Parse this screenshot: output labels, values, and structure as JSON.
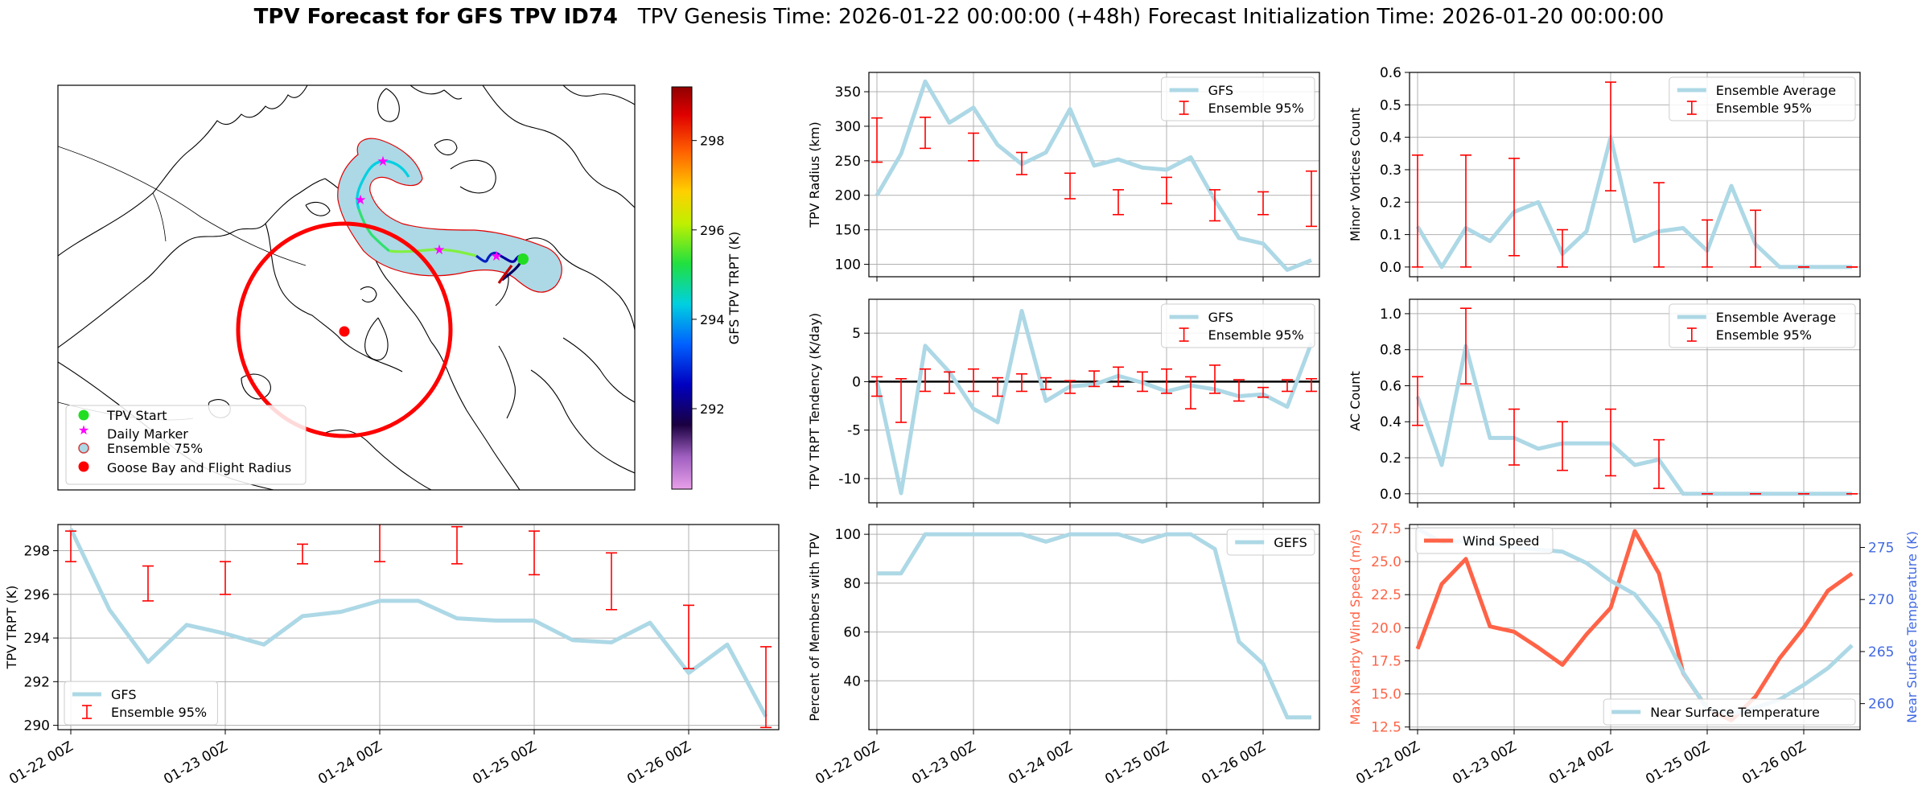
{
  "header": {
    "title_bold": "TPV Forecast for GFS TPV ID74",
    "title_rest": "TPV Genesis Time: 2026-01-22 00:00:00 (+48h)   Forecast Initialization Time: 2026-01-20 00:00:00"
  },
  "date_ticks": [
    "01-22 00Z",
    "01-23 00Z",
    "01-24 00Z",
    "01-25 00Z",
    "01-26 00Z"
  ],
  "colors": {
    "gfs": "#add8e6",
    "err": "#ff0000",
    "wind": "#ff6347",
    "temp_axis": "#4169e1",
    "zero": "#000000"
  },
  "chart_data": [
    {
      "id": "map",
      "type": "map",
      "colorbar": {
        "label": "GFS TPV TRPT (K)",
        "ticks": [
          292,
          294,
          296,
          298
        ],
        "range": [
          290.2,
          299.2
        ]
      },
      "legend": [
        "TPV Start",
        "Daily Marker",
        "Ensemble 75%",
        "Goose Bay and Flight Radius"
      ],
      "legend_location": "lower-left"
    },
    {
      "id": "trpt",
      "type": "line",
      "ylabel": "TPV TRPT (K)",
      "ylim": [
        289.8,
        299.2
      ],
      "yticks": [
        290,
        292,
        294,
        296,
        298
      ],
      "x_hours": [
        0,
        6,
        12,
        18,
        24,
        30,
        36,
        42,
        48,
        54,
        60,
        66,
        72,
        78,
        84,
        90,
        96,
        102,
        108
      ],
      "series": [
        {
          "name": "GFS",
          "values": [
            299.0,
            295.3,
            292.9,
            294.6,
            294.2,
            293.7,
            295.0,
            295.2,
            295.7,
            295.7,
            294.9,
            294.8,
            294.8,
            293.9,
            293.8,
            294.7,
            292.4,
            293.7,
            290.4
          ]
        }
      ],
      "errorbars": {
        "name": "Ensemble 95%",
        "x_hours": [
          0,
          12,
          24,
          36,
          48,
          60,
          72,
          84,
          96,
          108
        ],
        "low": [
          297.5,
          295.7,
          296.0,
          297.4,
          297.5,
          297.4,
          296.9,
          295.3,
          292.6,
          289.9
        ],
        "high": [
          298.9,
          297.3,
          297.5,
          298.3,
          299.5,
          299.1,
          298.9,
          297.9,
          295.5,
          293.6
        ]
      },
      "legend_location": "lower-left"
    },
    {
      "id": "radius",
      "type": "line",
      "ylabel": "TPV Radius (km)",
      "ylim": [
        82,
        378
      ],
      "yticks": [
        100,
        150,
        200,
        250,
        300,
        350
      ],
      "x_hours": [
        0,
        6,
        12,
        18,
        24,
        30,
        36,
        42,
        48,
        54,
        60,
        66,
        72,
        78,
        84,
        90,
        96,
        102,
        108
      ],
      "series": [
        {
          "name": "GFS",
          "values": [
            200,
            260,
            365,
            305,
            327,
            273,
            245,
            262,
            325,
            243,
            252,
            240,
            237,
            255,
            193,
            138,
            130,
            92,
            106
          ]
        }
      ],
      "errorbars": {
        "name": "Ensemble 95%",
        "x_hours": [
          0,
          12,
          24,
          36,
          48,
          60,
          72,
          84,
          96,
          108
        ],
        "low": [
          248,
          268,
          250,
          230,
          195,
          172,
          188,
          163,
          172,
          155
        ],
        "high": [
          312,
          313,
          290,
          262,
          232,
          208,
          226,
          208,
          205,
          235
        ]
      },
      "legend_location": "top-right"
    },
    {
      "id": "tendency",
      "type": "line",
      "ylabel": "TPV TRPT Tendency (K/day)",
      "ylim": [
        -12.5,
        8.5
      ],
      "yticks": [
        -10,
        -5,
        0,
        5
      ],
      "x_hours": [
        0,
        6,
        12,
        18,
        24,
        30,
        36,
        42,
        48,
        54,
        60,
        66,
        72,
        78,
        84,
        90,
        96,
        102,
        108
      ],
      "series": [
        {
          "name": "GFS",
          "values": [
            0.0,
            -11.5,
            3.7,
            1.0,
            -2.8,
            -4.2,
            7.3,
            -2.0,
            -0.5,
            -0.3,
            0.6,
            -0.1,
            -1.0,
            -0.4,
            -0.8,
            -1.5,
            -1.3,
            -2.6,
            4.0
          ]
        }
      ],
      "errorbars": {
        "name": "Ensemble 95%",
        "x_hours": [
          0,
          6,
          12,
          18,
          24,
          30,
          36,
          42,
          48,
          54,
          60,
          66,
          72,
          78,
          84,
          90,
          96,
          102,
          108
        ],
        "low": [
          -1.5,
          -4.2,
          -1.0,
          -1.2,
          -1.0,
          -1.5,
          -1.0,
          -0.8,
          -1.2,
          -0.5,
          -0.5,
          -1.0,
          -1.2,
          -2.8,
          -1.2,
          -2.0,
          -1.6,
          -1.0,
          -1.0
        ],
        "high": [
          0.5,
          0.3,
          1.3,
          1.0,
          1.3,
          0.4,
          0.8,
          0.4,
          0.1,
          1.1,
          1.5,
          1.0,
          1.3,
          0.5,
          1.7,
          0.2,
          -0.6,
          0.2,
          0.3
        ]
      },
      "hline": 0,
      "legend_location": "top-right"
    },
    {
      "id": "members",
      "type": "line",
      "ylabel": "Percent of Members with TPV",
      "ylim": [
        20,
        104
      ],
      "yticks": [
        40,
        60,
        80,
        100
      ],
      "x_hours": [
        0,
        6,
        12,
        18,
        24,
        30,
        36,
        42,
        48,
        54,
        60,
        66,
        72,
        78,
        84,
        90,
        96,
        102,
        108
      ],
      "series": [
        {
          "name": "GEFS",
          "values": [
            84,
            84,
            100,
            100,
            100,
            100,
            100,
            97,
            100,
            100,
            100,
            97,
            100,
            100,
            94,
            56,
            47,
            25,
            25
          ]
        }
      ],
      "legend_location": "top-right"
    },
    {
      "id": "minor",
      "type": "line",
      "ylabel": "Minor Vortices Count",
      "ylim": [
        -0.03,
        0.6
      ],
      "yticks": [
        0.0,
        0.1,
        0.2,
        0.3,
        0.4,
        0.5,
        0.6
      ],
      "x_hours": [
        0,
        6,
        12,
        18,
        24,
        30,
        36,
        42,
        48,
        54,
        60,
        66,
        72,
        78,
        84,
        90,
        96,
        102,
        108
      ],
      "series": [
        {
          "name": "Ensemble Average",
          "values": [
            0.125,
            0.0,
            0.12,
            0.08,
            0.17,
            0.2,
            0.04,
            0.11,
            0.4,
            0.08,
            0.11,
            0.12,
            0.05,
            0.25,
            0.07,
            0.0,
            0.0,
            0.0,
            0.0
          ]
        }
      ],
      "errorbars": {
        "name": "Ensemble 95%",
        "x_hours": [
          0,
          12,
          24,
          36,
          48,
          60,
          72,
          84,
          96,
          108
        ],
        "low": [
          0.0,
          0.0,
          0.035,
          0.0,
          0.235,
          0.0,
          0.0,
          0.0,
          0.0,
          0.0
        ],
        "high": [
          0.345,
          0.345,
          0.335,
          0.115,
          0.57,
          0.26,
          0.145,
          0.175,
          0.0,
          0.0
        ]
      },
      "legend_location": "top-right"
    },
    {
      "id": "ac",
      "type": "line",
      "ylabel": "AC Count",
      "ylim": [
        -0.05,
        1.08
      ],
      "yticks": [
        0.0,
        0.2,
        0.4,
        0.6,
        0.8,
        1.0
      ],
      "x_hours": [
        0,
        6,
        12,
        18,
        24,
        30,
        36,
        42,
        48,
        54,
        60,
        66,
        72,
        78,
        84,
        90,
        96,
        102,
        108
      ],
      "series": [
        {
          "name": "Ensemble Average",
          "values": [
            0.54,
            0.16,
            0.82,
            0.31,
            0.31,
            0.25,
            0.28,
            0.28,
            0.28,
            0.16,
            0.19,
            0.0,
            0.0,
            0.0,
            0.0,
            0.0,
            0.0,
            0.0,
            0.0
          ]
        }
      ],
      "errorbars": {
        "name": "Ensemble 95%",
        "x_hours": [
          0,
          12,
          24,
          36,
          48,
          60,
          72,
          84,
          96,
          108
        ],
        "low": [
          0.38,
          0.61,
          0.16,
          0.13,
          0.1,
          0.03,
          0.0,
          0.0,
          0.0,
          0.0
        ],
        "high": [
          0.65,
          1.03,
          0.47,
          0.4,
          0.47,
          0.3,
          0.0,
          0.0,
          0.0,
          0.0
        ]
      },
      "legend_location": "top-right"
    },
    {
      "id": "wind",
      "type": "line",
      "ylabel": "Max Nearby Wind Speed (m/s)",
      "ylabel2": "Near Surface Temperature (K)",
      "ylim": [
        12.3,
        27.8
      ],
      "yticks": [
        12.5,
        15.0,
        17.5,
        20.0,
        22.5,
        25.0,
        27.5
      ],
      "y2lim": [
        257.5,
        277.2
      ],
      "y2ticks": [
        260,
        265,
        270,
        275
      ],
      "x_hours": [
        0,
        6,
        12,
        18,
        24,
        30,
        36,
        42,
        48,
        54,
        60,
        66,
        72,
        78,
        84,
        90,
        96,
        102,
        108
      ],
      "series": [
        {
          "name": "Wind Speed",
          "axis": "left",
          "values": [
            18.4,
            23.3,
            25.2,
            20.1,
            19.7,
            18.5,
            17.2,
            19.5,
            21.5,
            27.3,
            24.1,
            16.6,
            13.9,
            13.0,
            14.8,
            17.7,
            20.0,
            22.8,
            24.1
          ]
        },
        {
          "name": "Near Surface Temperature",
          "axis": "right",
          "values": [
            276.8,
            275.5,
            275.6,
            275.4,
            275.0,
            274.8,
            274.6,
            273.5,
            271.8,
            270.5,
            267.6,
            263.0,
            259.5,
            259.0,
            259.6,
            260.4,
            261.8,
            263.4,
            265.6
          ]
        }
      ],
      "legend_location": "top-left / bottom-right"
    }
  ]
}
